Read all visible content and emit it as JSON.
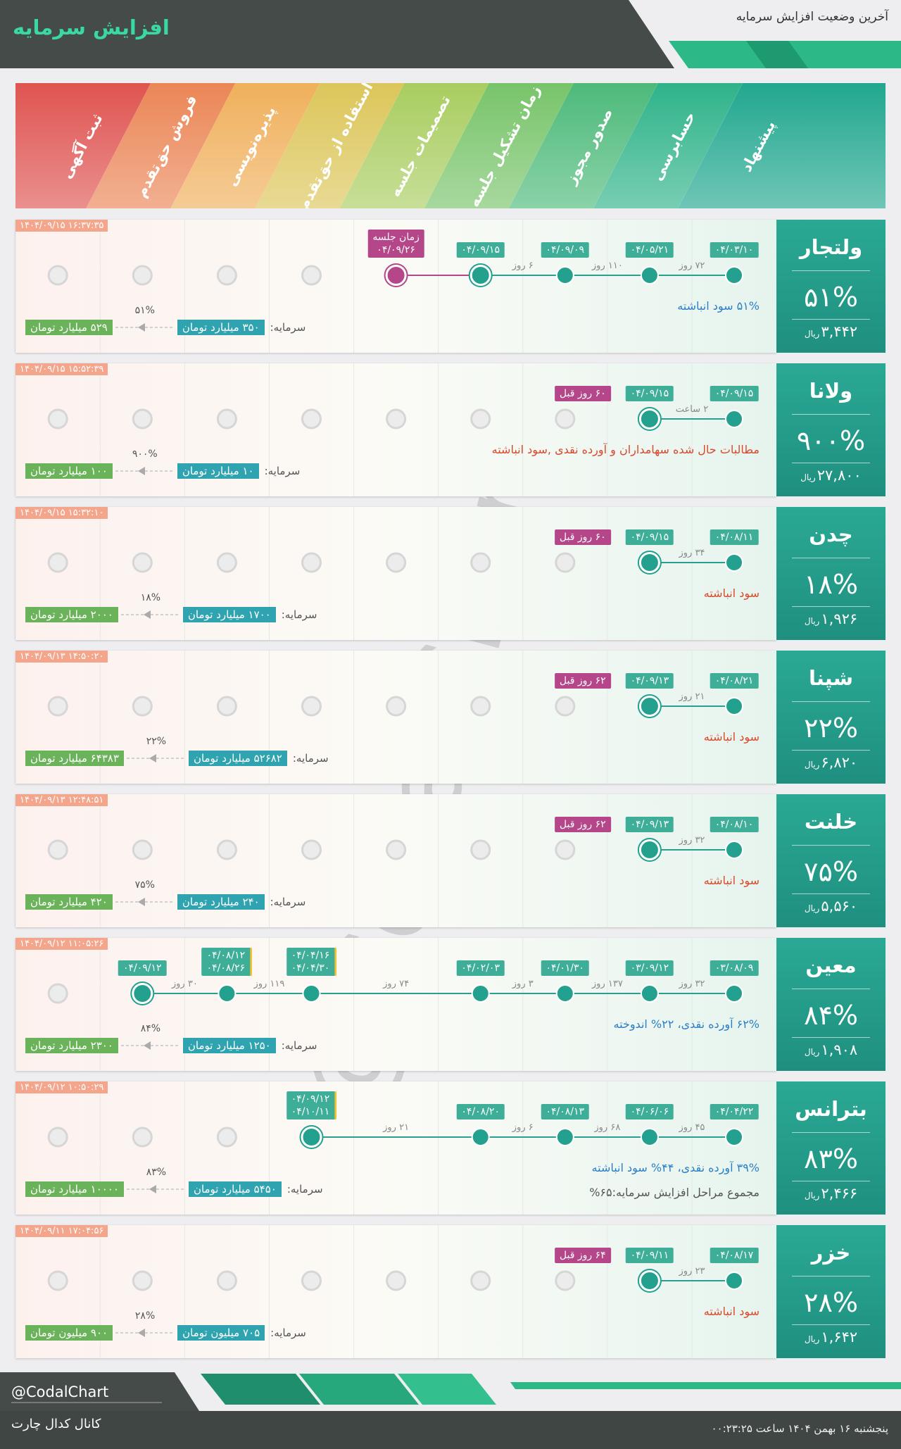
{
  "header": {
    "title": "افزایش سرمایه",
    "subtitle": "آخرین وضعیت افزایش سرمایه"
  },
  "stages": [
    {
      "name": "پیشنهاد",
      "color": "#22a78f"
    },
    {
      "name": "حسابرسی",
      "color": "#2fb38a"
    },
    {
      "name": "صدور مجوز",
      "color": "#4dba7a"
    },
    {
      "name": "زمان تشکیل جلسه",
      "color": "#78c46a"
    },
    {
      "name": "تصمیمات جلسه",
      "color": "#a9cd60"
    },
    {
      "name": "استفاده از حق‌تقدم",
      "color": "#dcc65a"
    },
    {
      "name": "پذیره‌نویسی",
      "color": "#f0b05c"
    },
    {
      "name": "فروش حق‌تقدم",
      "color": "#eb8656"
    },
    {
      "name": "ثبت آگهی",
      "color": "#df5451"
    }
  ],
  "companies": [
    {
      "name": "ولتجار",
      "percent": "۵۱%",
      "price": "۳,۴۴۲",
      "currency": "ریال",
      "timestamp": "۱۴۰۴/۰۹/۱۵ ۱۶:۳۷:۳۵",
      "nodes": [
        {
          "stage": 0,
          "dates": [
            "۰۴/۰۳/۱۰"
          ]
        },
        {
          "stage": 1,
          "dates": [
            "۰۴/۰۵/۲۱"
          ]
        },
        {
          "stage": 2,
          "dates": [
            "۰۴/۰۹/۰۹"
          ]
        },
        {
          "stage": 3,
          "dates": [
            "۰۴/۰۹/۱۵"
          ],
          "current": true
        },
        {
          "stage": 4,
          "label": "زمان جلسه",
          "dates": [
            "۰۴/۰۹/۲۶"
          ],
          "meeting": true
        }
      ],
      "gaps": [
        "۷۲ روز",
        "۱۱۰ روز",
        "۶ روز"
      ],
      "note": "۵۱% سود انباشته",
      "note_color": "#2b7fc6",
      "capital": {
        "label": "سرمایه:",
        "from": "۳۵۰ میلیارد تومان",
        "percent": "۵۱%",
        "to": "۵۲۹ میلیارد تومان"
      }
    },
    {
      "name": "ولانا",
      "percent": "۹۰۰%",
      "price": "۲۷,۸۰۰",
      "currency": "ریال",
      "timestamp": "۱۴۰۴/۰۹/۱۵ ۱۵:۵۲:۳۹",
      "nodes": [
        {
          "stage": 0,
          "dates": [
            "۰۴/۰۹/۱۵"
          ]
        },
        {
          "stage": 1,
          "dates": [
            "۰۴/۰۹/۱۵"
          ],
          "current": true
        }
      ],
      "badge": "۶۰ روز قبل",
      "gaps": [
        "۲ ساعت"
      ],
      "note": "مطالبات حال شده سهامداران و آورده نقدی ,سود انباشته",
      "note_color": "#d8492c",
      "capital": {
        "label": "سرمایه:",
        "from": "۱۰ میلیارد تومان",
        "percent": "۹۰۰%",
        "to": "۱۰۰ میلیارد تومان"
      }
    },
    {
      "name": "چدن",
      "percent": "۱۸%",
      "price": "۱,۹۲۶",
      "currency": "ریال",
      "timestamp": "۱۴۰۴/۰۹/۱۵ ۱۵:۳۲:۱۰",
      "nodes": [
        {
          "stage": 0,
          "dates": [
            "۰۴/۰۸/۱۱"
          ]
        },
        {
          "stage": 1,
          "dates": [
            "۰۴/۰۹/۱۵"
          ],
          "current": true
        }
      ],
      "badge": "۶۰ روز قبل",
      "gaps": [
        "۳۴ روز"
      ],
      "note": "سود انباشته",
      "note_color": "#d8492c",
      "capital": {
        "label": "سرمایه:",
        "from": "۱۷۰۰ میلیارد تومان",
        "percent": "۱۸%",
        "to": "۲۰۰۰ میلیارد تومان"
      }
    },
    {
      "name": "شپنا",
      "percent": "۲۲%",
      "price": "۶,۸۲۰",
      "currency": "ریال",
      "timestamp": "۱۴۰۴/۰۹/۱۳ ۱۴:۵۰:۲۰",
      "nodes": [
        {
          "stage": 0,
          "dates": [
            "۰۴/۰۸/۲۱"
          ]
        },
        {
          "stage": 1,
          "dates": [
            "۰۴/۰۹/۱۳"
          ],
          "current": true
        }
      ],
      "badge": "۶۲ روز قبل",
      "gaps": [
        "۲۱ روز"
      ],
      "note": "سود انباشته",
      "note_color": "#d8492c",
      "capital": {
        "label": "سرمایه:",
        "from": "۵۲۶۸۲ میلیارد تومان",
        "percent": "۲۲%",
        "to": "۶۴۳۸۳ میلیارد تومان"
      }
    },
    {
      "name": "خلنت",
      "percent": "۷۵%",
      "price": "۵,۵۶۰",
      "currency": "ریال",
      "timestamp": "۱۴۰۴/۰۹/۱۳ ۱۲:۴۸:۵۱",
      "nodes": [
        {
          "stage": 0,
          "dates": [
            "۰۴/۰۸/۱۰"
          ]
        },
        {
          "stage": 1,
          "dates": [
            "۰۴/۰۹/۱۳"
          ],
          "current": true
        }
      ],
      "badge": "۶۲ روز قبل",
      "gaps": [
        "۳۲ روز"
      ],
      "note": "سود انباشته",
      "note_color": "#d8492c",
      "capital": {
        "label": "سرمایه:",
        "from": "۲۴۰ میلیارد تومان",
        "percent": "۷۵%",
        "to": "۴۲۰ میلیارد تومان"
      }
    },
    {
      "name": "معین",
      "percent": "۸۴%",
      "price": "۱,۹۰۸",
      "currency": "ریال",
      "timestamp": "۱۴۰۴/۰۹/۱۲ ۱۱:۰۵:۲۶",
      "nodes": [
        {
          "stage": 0,
          "dates": [
            "۰۳/۰۸/۰۹"
          ]
        },
        {
          "stage": 1,
          "dates": [
            "۰۳/۰۹/۱۲"
          ]
        },
        {
          "stage": 2,
          "dates": [
            "۰۴/۰۱/۳۰"
          ]
        },
        {
          "stage": 3,
          "dates": [
            "۰۴/۰۲/۰۳"
          ]
        },
        {
          "stage": 5,
          "dates": [
            "۰۴/۰۴/۱۶",
            "۰۴/۰۴/۳۰"
          ]
        },
        {
          "stage": 6,
          "dates": [
            "۰۴/۰۸/۱۲",
            "۰۴/۰۸/۲۶"
          ]
        },
        {
          "stage": 7,
          "dates": [
            "۰۴/۰۹/۱۲"
          ],
          "current": true
        }
      ],
      "gaps": [
        "۳۲ روز",
        "۱۳۷ روز",
        "۳ روز",
        "۷۴ روز",
        "۱۱۹ روز",
        "۳۰ روز"
      ],
      "note": "۶۲% آورده نقدی، ۲۲% اندوخته",
      "note_color": "#2b7fc6",
      "capital": {
        "label": "سرمایه:",
        "from": "۱۲۵۰ میلیارد تومان",
        "percent": "۸۴%",
        "to": "۲۳۰۰ میلیارد تومان"
      }
    },
    {
      "name": "بترانس",
      "percent": "۸۳%",
      "price": "۲,۴۶۶",
      "currency": "ریال",
      "timestamp": "۱۴۰۴/۰۹/۱۲ ۱۰:۵۰:۲۹",
      "nodes": [
        {
          "stage": 0,
          "dates": [
            "۰۴/۰۴/۲۲"
          ]
        },
        {
          "stage": 1,
          "dates": [
            "۰۴/۰۶/۰۶"
          ]
        },
        {
          "stage": 2,
          "dates": [
            "۰۴/۰۸/۱۳"
          ]
        },
        {
          "stage": 3,
          "dates": [
            "۰۴/۰۸/۲۰"
          ]
        },
        {
          "stage": 5,
          "dates": [
            "۰۴/۰۹/۱۲",
            "۰۴/۱۰/۱۱"
          ],
          "current": true
        }
      ],
      "gaps": [
        "۴۵ روز",
        "۶۸ روز",
        "۶ روز",
        "۲۱ روز"
      ],
      "note": "۳۹% آورده نقدی، ۴۴% سود انباشته",
      "note_color": "#2b7fc6",
      "extra_note": "مجموع مراحل افزایش سرمایه:۶۵%",
      "capital": {
        "label": "سرمایه:",
        "from": "۵۴۵۰ میلیارد تومان",
        "percent": "۸۳%",
        "to": "۱۰۰۰۰ میلیارد تومان"
      }
    },
    {
      "name": "خزر",
      "percent": "۲۸%",
      "price": "۱,۶۴۲",
      "currency": "ریال",
      "timestamp": "۱۴۰۴/۰۹/۱۱ ۱۷:۰۴:۵۶",
      "nodes": [
        {
          "stage": 0,
          "dates": [
            "۰۴/۰۸/۱۷"
          ]
        },
        {
          "stage": 1,
          "dates": [
            "۰۴/۰۹/۱۱"
          ],
          "current": true
        }
      ],
      "badge": "۶۴ روز قبل",
      "gaps": [
        "۲۳ روز"
      ],
      "note": "سود انباشته",
      "note_color": "#d8492c",
      "capital": {
        "label": "سرمایه:",
        "from": "۷۰۵ میلیون تومان",
        "percent": "۲۸%",
        "to": "۹۰۰ میلیون تومان"
      }
    }
  ],
  "watermark": "@CodalChart",
  "footer": {
    "handle": "@CodalChart",
    "channel": "کانال کدال چارت",
    "date": "پنجشنبه ۱۶ بهمن ۱۴۰۴ ساعت ۰۰:۲۳:۲۵"
  }
}
